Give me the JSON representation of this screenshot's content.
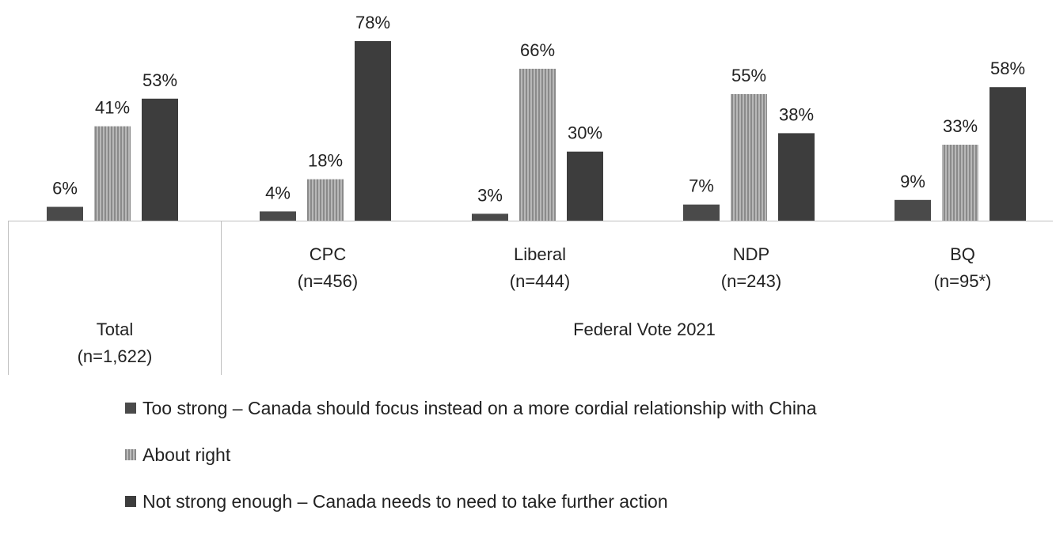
{
  "colors": {
    "too_strong": "#4a4a4a",
    "about_right": "#a6a6a6",
    "not_strong_enough": "#3d3d3d",
    "divider": "#bfbfbf"
  },
  "chart_data": {
    "type": "bar",
    "categories": [
      "Total\n(n=1,622)",
      "CPC\n(n=456)",
      "Liberal\n(n=444)",
      "NDP\n(n=243)",
      "BQ\n(n=95*)"
    ],
    "group_label": "Federal Vote 2021",
    "series": [
      {
        "name": "Too strong – Canada should focus instead on a more cordial relationship with China",
        "values": [
          6,
          4,
          3,
          7,
          9
        ],
        "color": "#4a4a4a"
      },
      {
        "name": "About right",
        "values": [
          41,
          18,
          66,
          55,
          33
        ],
        "color": "#a6a6a6"
      },
      {
        "name": "Not strong enough – Canada needs to need to take further action",
        "values": [
          53,
          78,
          30,
          38,
          58
        ],
        "color": "#3d3d3d"
      }
    ],
    "value_suffix": "%",
    "ylim": [
      0,
      78
    ],
    "xlabel": "",
    "ylabel": "",
    "title": "",
    "grid": false,
    "legend_position": "bottom"
  },
  "legend": {
    "items": [
      {
        "label": "Too strong – Canada should focus instead on a more cordial relationship with China",
        "color": "#4a4a4a"
      },
      {
        "label": "About right",
        "color": "#a6a6a6"
      },
      {
        "label": "Not strong enough – Canada needs to need to take further action",
        "color": "#3d3d3d"
      }
    ]
  }
}
